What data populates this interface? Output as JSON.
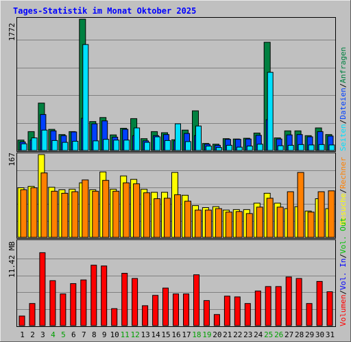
{
  "chart_data": {
    "type": "bar",
    "title": "Tages-Statistik im Monat Oktober 2025",
    "days": [
      "1",
      "2",
      "3",
      "4",
      "5",
      "6",
      "7",
      "8",
      "9",
      "10",
      "11",
      "12",
      "13",
      "14",
      "15",
      "16",
      "17",
      "18",
      "19",
      "20",
      "21",
      "22",
      "23",
      "24",
      "25",
      "26",
      "27",
      "28",
      "29",
      "30",
      "31"
    ],
    "weekend_days": [
      "4",
      "5",
      "11",
      "12",
      "18",
      "19",
      "25",
      "26"
    ],
    "panels": [
      {
        "id": "hits",
        "ylabel": "1772",
        "ymax": 1772,
        "series_labels": [
          "Anfragen",
          "Dateien",
          "Seiten"
        ],
        "series": [
          {
            "name": "Anfragen",
            "color": "#008040",
            "values": [
              140,
              255,
              640,
              285,
              215,
              255,
              1772,
              390,
              445,
              210,
              300,
              430,
              160,
              255,
              240,
              145,
              275,
              535,
              95,
              85,
              160,
              155,
              165,
              235,
              1460,
              170,
              265,
              265,
              200,
              305,
              215
            ]
          },
          {
            "name": "Dateien",
            "color": "#0040ff",
            "values": [
              115,
              140,
              485,
              265,
              200,
              250,
              435,
              360,
              400,
              180,
              285,
              200,
              130,
              200,
              215,
              130,
              230,
              200,
              85,
              70,
              150,
              150,
              155,
              205,
              415,
              155,
              210,
              215,
              185,
              255,
              195
            ]
          },
          {
            "name": "Seiten",
            "color": "#00e0ff",
            "values": [
              90,
              170,
              275,
              135,
              110,
              125,
              1430,
              130,
              150,
              140,
              140,
              305,
              110,
              185,
              135,
              360,
              120,
              330,
              60,
              40,
              70,
              45,
              60,
              85,
              1055,
              65,
              70,
              80,
              75,
              80,
              75
            ]
          }
        ]
      },
      {
        "id": "visits",
        "ylabel": "167",
        "ymax": 167,
        "series_labels": [
          "Besuche",
          "Rechner"
        ],
        "series": [
          {
            "name": "Besuche",
            "color": "#ffff00",
            "values": [
              100,
              103,
              167,
              101,
              96,
              97,
              110,
              96,
              132,
              97,
              124,
              117,
              97,
              91,
              91,
              131,
              85,
              64,
              60,
              62,
              55,
              56,
              56,
              69,
              89,
              69,
              58,
              62,
              53,
              78,
              58
            ]
          },
          {
            "name": "Rechner",
            "color": "#ff8000",
            "values": [
              96,
              100,
              130,
              93,
              89,
              92,
              116,
              93,
              115,
              93,
              110,
              108,
              90,
              78,
              79,
              86,
              73,
              55,
              55,
              58,
              51,
              52,
              48,
              61,
              79,
              61,
              92,
              131,
              51,
              92,
              94
            ]
          }
        ]
      },
      {
        "id": "volume",
        "ylabel": "11.42 MB",
        "ymax": 11.42,
        "series_labels": [
          "Volumen",
          "Vol. In",
          "Vol. Out"
        ],
        "series": [
          {
            "name": "Volumen",
            "color": "#ff0000",
            "values": [
              1.3,
              3.0,
              9.9,
              6.1,
              4.3,
              5.7,
              6.2,
              8.2,
              8.1,
              2.3,
              7.1,
              6.4,
              2.7,
              4.1,
              5.1,
              4.3,
              4.3,
              6.9,
              3.4,
              1.5,
              4.0,
              3.9,
              3.0,
              4.7,
              5.3,
              5.3,
              6.6,
              6.4,
              3.0,
              6.0,
              4.6
            ]
          }
        ]
      }
    ],
    "side_label_colors": {
      "Anfragen": "#008040",
      "Dateien": "#0040ff",
      "Seiten": "#00e0ff",
      "Besuche": "#ffff00",
      "Rechner": "#ff8000",
      "Vol. Out": "#00c000",
      "Vol. In": "#0000ff",
      "Volumen": "#ff0000"
    },
    "separator": "/",
    "colors": {
      "background": "#c0c0c0",
      "title": "#0000ff",
      "gridline": "#808080",
      "weekday_label": "#000000",
      "weekend_label": "#00a000"
    }
  }
}
